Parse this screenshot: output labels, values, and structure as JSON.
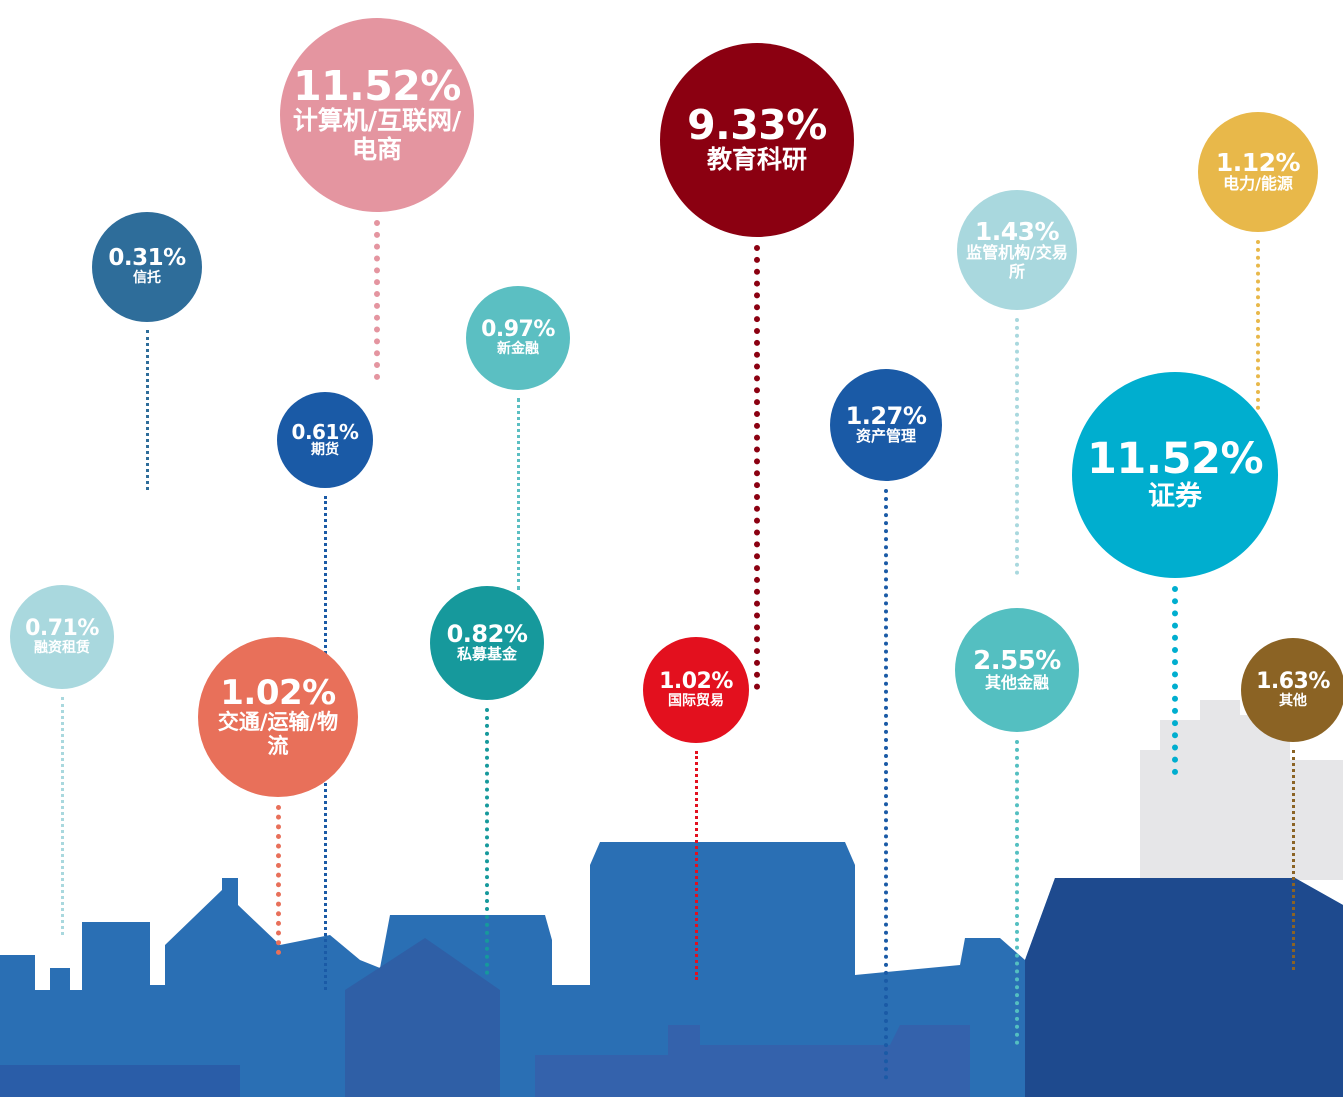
{
  "items": [
    {
      "value": "11.52%",
      "label": "计算机/互联网/电商"
    },
    {
      "value": "9.33%",
      "label": "教育科研"
    },
    {
      "value": "1.12%",
      "label": "电力/能源"
    },
    {
      "value": "0.31%",
      "label": "信托"
    },
    {
      "value": "1.43%",
      "label": "监管机构/交易所"
    },
    {
      "value": "0.97%",
      "label": "新金融"
    },
    {
      "value": "0.61%",
      "label": "期货"
    },
    {
      "value": "1.27%",
      "label": "资产管理"
    },
    {
      "value": "11.52%",
      "label": "证券"
    },
    {
      "value": "0.71%",
      "label": "融资租赁"
    },
    {
      "value": "1.02%",
      "label": "交通/运输/物流"
    },
    {
      "value": "0.82%",
      "label": "私募基金"
    },
    {
      "value": "1.02%",
      "label": "国际贸易"
    },
    {
      "value": "2.55%",
      "label": "其他金融"
    },
    {
      "value": "1.63%",
      "label": "其他"
    }
  ]
}
